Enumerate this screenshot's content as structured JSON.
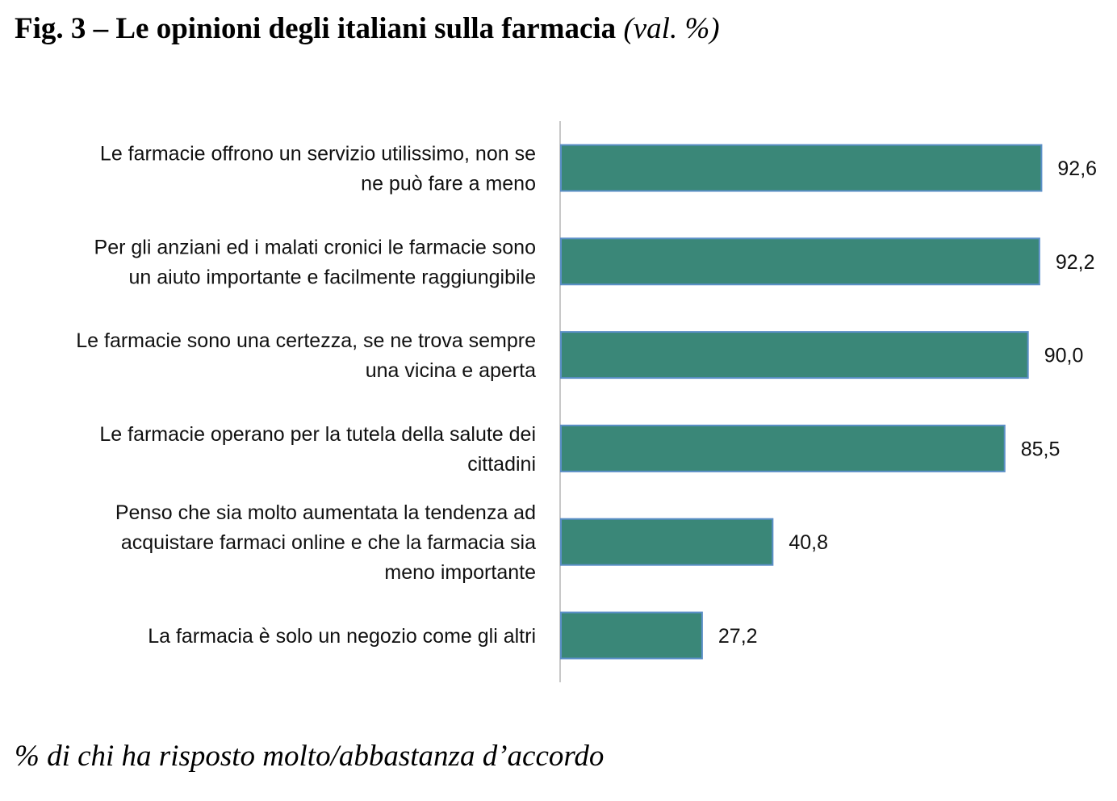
{
  "header": {
    "title_main": "Fig. 3 – Le opinioni degli italiani sulla farmacia",
    "title_unit": "(val. %)"
  },
  "footnote": "% di chi ha risposto molto/abbastanza d’accordo",
  "colors": {
    "bar_fill": "#3a8778",
    "bar_stroke": "#5b8fc7",
    "axis": "#c8c8c8"
  },
  "chart_data": {
    "type": "bar",
    "orientation": "horizontal",
    "title": "Fig. 3 – Le opinioni degli italiani sulla farmacia (val. %)",
    "xlabel": "",
    "ylabel": "",
    "xlim": [
      0,
      100
    ],
    "grid": false,
    "categories": [
      [
        "Le farmacie offrono un servizio utilissimo, non se",
        "ne può fare a meno"
      ],
      [
        "Per gli anziani ed i malati cronici le farmacie sono",
        "un aiuto importante e facilmente raggiungibile"
      ],
      [
        "Le farmacie sono una certezza, se ne trova sempre",
        "una vicina e aperta"
      ],
      [
        "Le farmacie operano per la tutela della salute dei",
        "cittadini"
      ],
      [
        "Penso che sia molto aumentata la tendenza ad",
        "acquistare farmaci online e che la farmacia sia",
        "meno importante"
      ],
      [
        "La farmacia è solo un negozio come gli altri"
      ]
    ],
    "values": [
      92.6,
      92.2,
      90.0,
      85.5,
      40.8,
      27.2
    ],
    "value_labels": [
      "92,6",
      "92,2",
      "90,0",
      "85,5",
      "40,8",
      "27,2"
    ]
  }
}
